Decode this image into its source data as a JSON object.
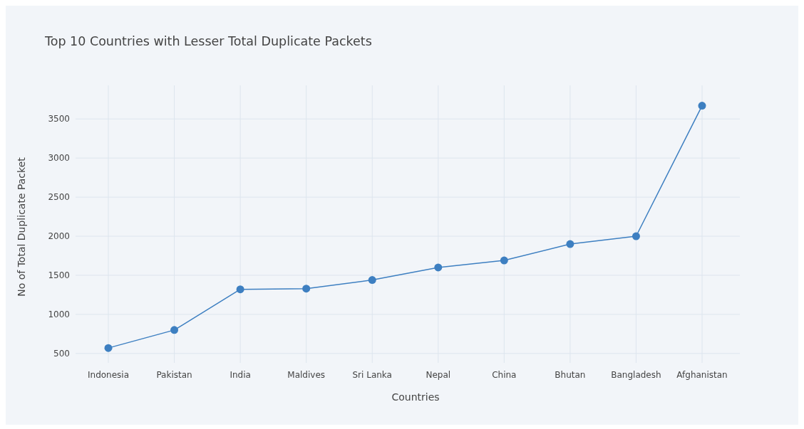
{
  "chart_data": {
    "type": "line",
    "title": "Top 10 Countries with Lesser Total Duplicate Packets",
    "xlabel": "Countries",
    "ylabel": "No of Total Duplicate Packet",
    "categories": [
      "Indonesia",
      "Pakistan",
      "India",
      "Maldives",
      "Sri Lanka",
      "Nepal",
      "China",
      "Bhutan",
      "Bangladesh",
      "Afghanistan"
    ],
    "series": [
      {
        "color": "#3d7fc1",
        "values": [
          570,
          800,
          1320,
          1330,
          1440,
          1600,
          1690,
          1900,
          2000,
          3670
        ]
      }
    ],
    "ylim": [
      380,
      3930
    ],
    "yticks": [
      500,
      1000,
      1500,
      2000,
      2500,
      3000,
      3500
    ],
    "grid": true,
    "marker": "circle",
    "line_style": "solid"
  }
}
